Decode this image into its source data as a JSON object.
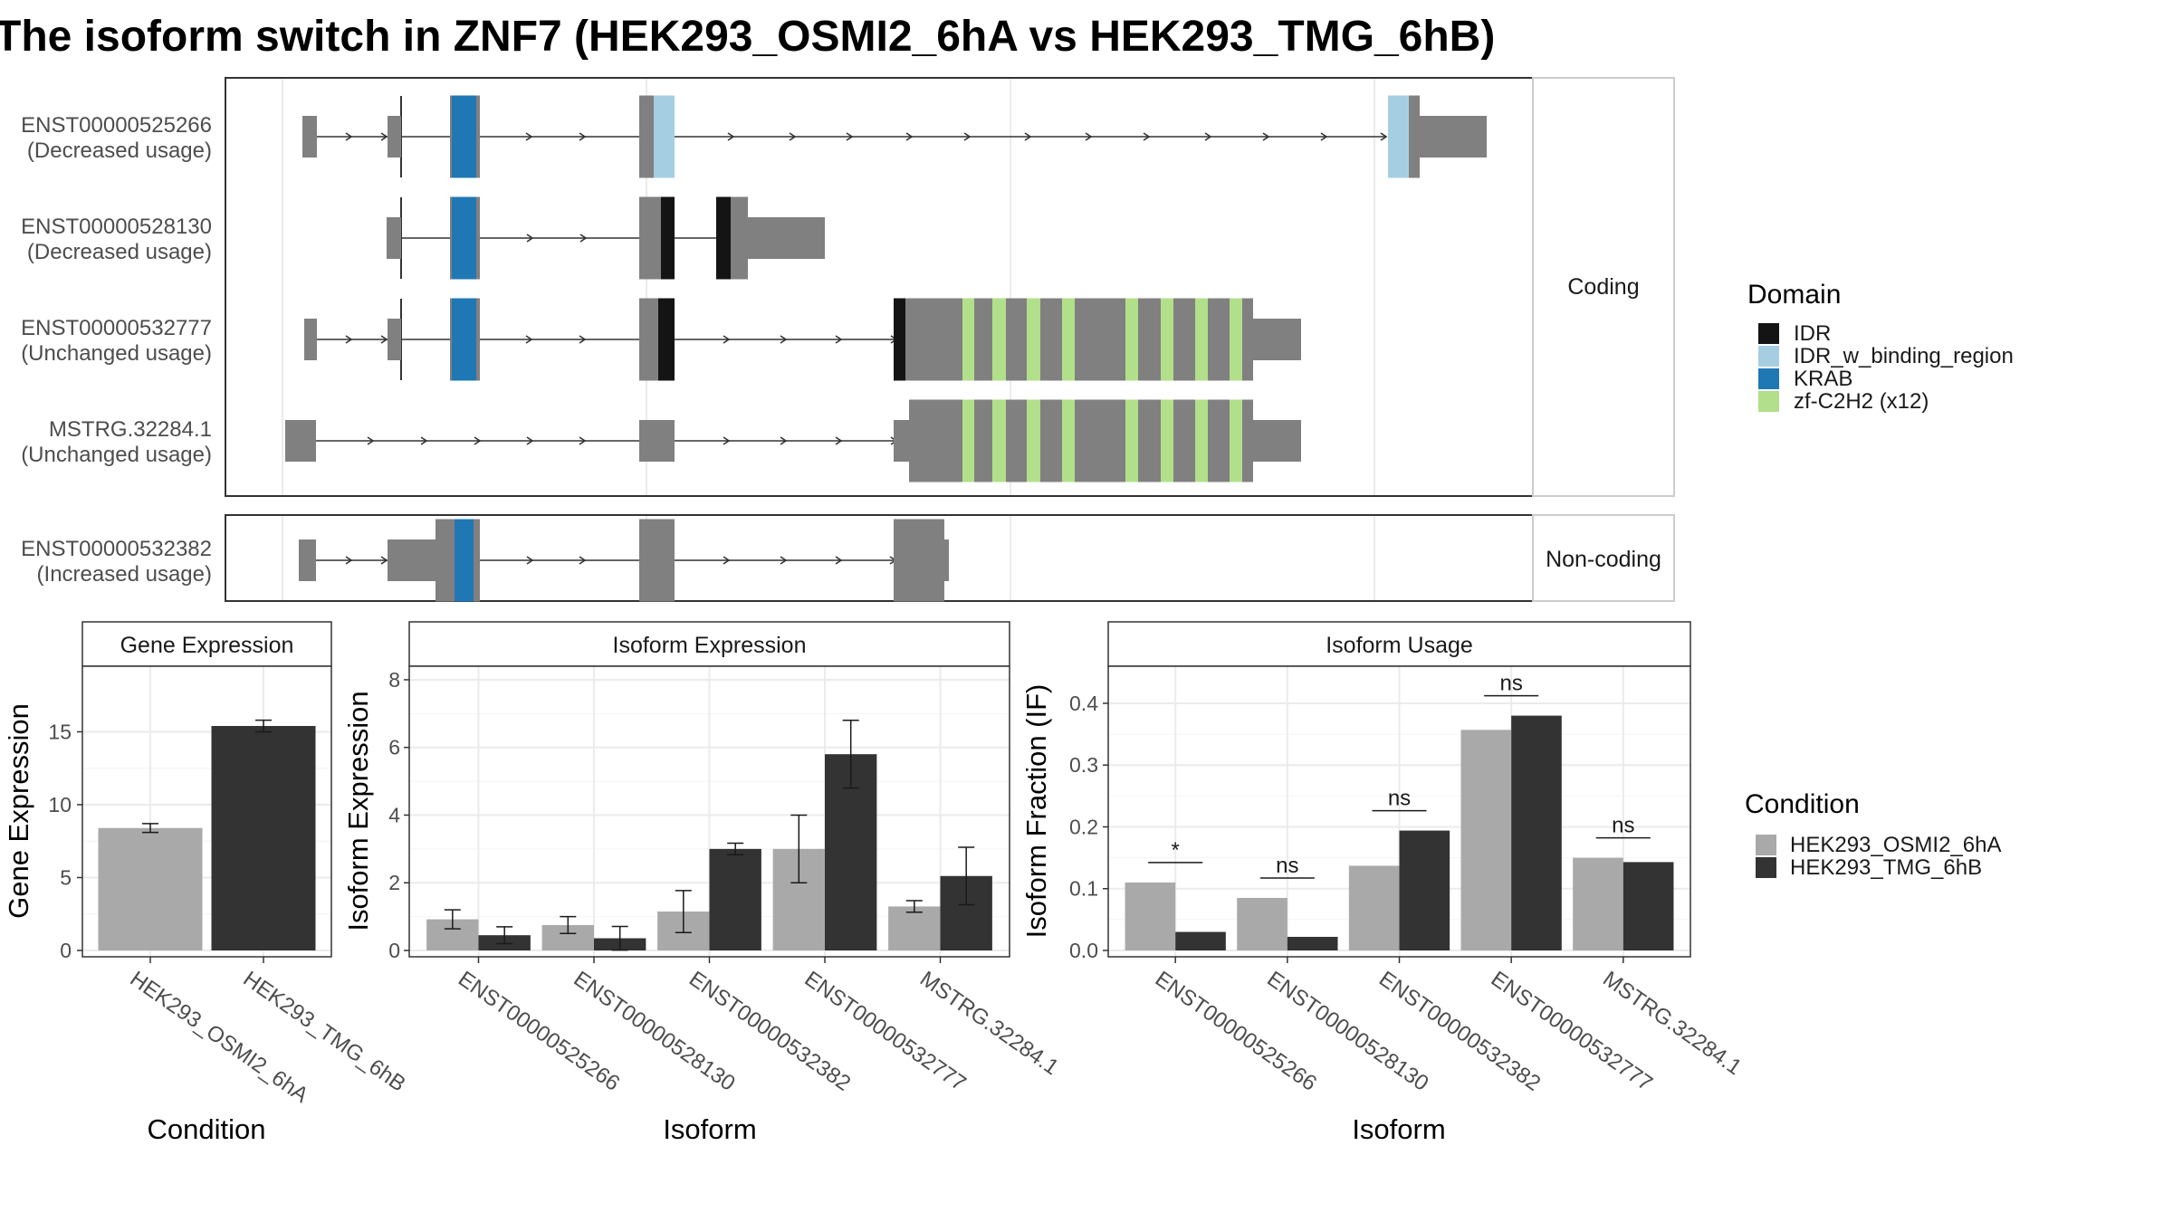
{
  "title": "The isoform switch in ZNF7 (HEK293_OSMI2_6hA vs HEK293_TMG_6hB)",
  "colors": {
    "exon": "#808080",
    "IDR": "#141414",
    "IDR_w_binding_region": "#a6cee3",
    "KRAB": "#1f78b4",
    "zf-C2H2": "#b2df8a",
    "cond1": "#a9a9a9",
    "cond2": "#333333"
  },
  "isoform_panel": {
    "coding_strip": "Coding",
    "noncoding_strip": "Non-coding",
    "transcripts": [
      {
        "id": "ENST00000525266",
        "usage": "(Decreased usage)",
        "group": "coding"
      },
      {
        "id": "ENST00000528130",
        "usage": "(Decreased usage)",
        "group": "coding"
      },
      {
        "id": "ENST00000532777",
        "usage": "(Unchanged usage)",
        "group": "coding"
      },
      {
        "id": "MSTRG.32284.1",
        "usage": "(Unchanged usage)",
        "group": "coding"
      },
      {
        "id": "ENST00000532382",
        "usage": "(Increased usage)",
        "group": "noncoding"
      }
    ]
  },
  "domain_legend": {
    "title": "Domain",
    "items": [
      {
        "label": "IDR",
        "color": "#141414"
      },
      {
        "label": "IDR_w_binding_region",
        "color": "#a6cee3"
      },
      {
        "label": "KRAB",
        "color": "#1f78b4"
      },
      {
        "label": "zf-C2H2 (x12)",
        "color": "#b2df8a"
      }
    ]
  },
  "condition_legend": {
    "title": "Condition",
    "items": [
      {
        "label": "HEK293_OSMI2_6hA",
        "color": "#a9a9a9"
      },
      {
        "label": "HEK293_TMG_6hB",
        "color": "#333333"
      }
    ]
  },
  "chart_data": [
    {
      "type": "bar",
      "panel_title": "Gene Expression",
      "xlabel": "Condition",
      "ylabel": "Gene Expression",
      "categories": [
        "HEK293_OSMI2_6hA",
        "HEK293_TMG_6hB"
      ],
      "values": [
        8.4,
        15.4
      ],
      "errors": [
        0.3,
        0.4
      ],
      "ylim": [
        0,
        19.5
      ],
      "yticks": [
        0,
        5,
        10,
        15
      ]
    },
    {
      "type": "bar",
      "panel_title": "Isoform Expression",
      "xlabel": "Isoform",
      "ylabel": "Isoform Expression",
      "categories": [
        "ENST00000525266",
        "ENST00000528130",
        "ENST00000532382",
        "ENST00000532777",
        "MSTRG.32284.1"
      ],
      "series": [
        {
          "name": "HEK293_OSMI2_6hA",
          "values": [
            0.92,
            0.75,
            1.15,
            3.0,
            1.3
          ],
          "errors": [
            0.28,
            0.25,
            0.62,
            1.0,
            0.17
          ]
        },
        {
          "name": "HEK293_TMG_6hB",
          "values": [
            0.45,
            0.36,
            3.0,
            5.8,
            2.2
          ],
          "errors": [
            0.25,
            0.35,
            0.17,
            1.0,
            0.85
          ]
        }
      ],
      "ylim": [
        0,
        8.4
      ],
      "yticks": [
        0,
        2,
        4,
        6,
        8
      ]
    },
    {
      "type": "bar",
      "panel_title": "Isoform Usage",
      "xlabel": "Isoform",
      "ylabel": "Isoform Fraction (IF)",
      "categories": [
        "ENST00000525266",
        "ENST00000528130",
        "ENST00000532382",
        "ENST00000532777",
        "MSTRG.32284.1"
      ],
      "series": [
        {
          "name": "HEK293_OSMI2_6hA",
          "values": [
            0.11,
            0.085,
            0.137,
            0.357,
            0.15
          ]
        },
        {
          "name": "HEK293_TMG_6hB",
          "values": [
            0.03,
            0.022,
            0.194,
            0.38,
            0.143
          ]
        }
      ],
      "significance": [
        "*",
        "ns",
        "ns",
        "ns",
        "ns"
      ],
      "ylim": [
        0,
        0.46
      ],
      "yticks": [
        0.0,
        0.1,
        0.2,
        0.3,
        0.4
      ],
      "ytick_labels": [
        "0.0",
        "0.1",
        "0.2",
        "0.3",
        "0.4"
      ]
    }
  ]
}
